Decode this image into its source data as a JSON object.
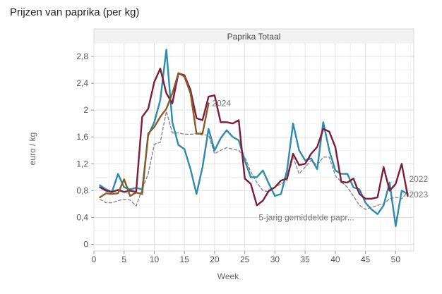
{
  "title": "Prijzen van paprika (per kg)",
  "chart_data": {
    "type": "line",
    "panel_title": "Paprika Totaal",
    "xlabel": "Week",
    "ylabel": "euro / kg",
    "xlim": [
      0,
      53
    ],
    "ylim": [
      -0.1,
      3.0
    ],
    "x_ticks": [
      0,
      5,
      10,
      15,
      20,
      25,
      30,
      35,
      40,
      45,
      50
    ],
    "y_ticks": [
      0,
      0.4,
      0.8,
      1.2,
      1.6,
      2,
      2.4,
      2.8
    ],
    "y_tick_labels": [
      "0",
      "0,4",
      "0,8",
      "1,2",
      "1,6",
      "2",
      "2,4",
      "2,8"
    ],
    "grid": true,
    "series": [
      {
        "name": "5-jarig gemiddelde papr...",
        "color": "#888888",
        "dashed": true,
        "x": [
          1,
          2,
          3,
          4,
          5,
          6,
          7,
          8,
          9,
          10,
          11,
          12,
          13,
          14,
          15,
          16,
          17,
          18,
          19,
          20,
          21,
          22,
          23,
          24,
          25,
          26,
          27,
          28,
          29,
          30,
          31,
          32,
          33,
          34,
          35,
          36,
          37,
          38,
          39,
          40,
          41,
          42,
          43,
          44,
          45,
          46,
          47,
          48,
          49,
          50,
          51,
          52
        ],
        "y": [
          0.67,
          0.62,
          0.62,
          0.65,
          0.67,
          0.66,
          0.57,
          0.82,
          1.05,
          1.49,
          1.52,
          1.98,
          1.66,
          1.66,
          1.64,
          1.64,
          1.65,
          1.63,
          1.63,
          1.35,
          1.4,
          1.44,
          1.42,
          1.4,
          1.3,
          1.08,
          0.92,
          0.8,
          0.78,
          0.85,
          0.9,
          0.95,
          1.3,
          1.05,
          1.15,
          1.25,
          1.18,
          1.3,
          1.3,
          1.02,
          0.93,
          0.85,
          0.72,
          0.58,
          0.52,
          0.55,
          0.58,
          0.6,
          0.68,
          0.7,
          0.68,
          0.78
        ]
      },
      {
        "name": "2022",
        "color": "#7b1e3a",
        "dashed": false,
        "x": [
          1,
          2,
          3,
          4,
          5,
          6,
          7,
          8,
          9,
          10,
          11,
          12,
          13,
          14,
          15,
          16,
          17,
          18,
          19,
          20,
          21,
          22,
          23,
          24,
          25,
          26,
          27,
          28,
          29,
          30,
          31,
          32,
          33,
          34,
          35,
          36,
          37,
          38,
          39,
          40,
          41,
          42,
          43,
          44,
          45,
          46,
          47,
          48,
          49,
          50,
          51,
          52
        ],
        "y": [
          0.85,
          0.8,
          0.78,
          0.81,
          0.78,
          0.8,
          0.78,
          1.9,
          2.02,
          2.42,
          2.62,
          2.25,
          2.1,
          2.55,
          2.52,
          2.3,
          1.88,
          1.85,
          2.2,
          2.22,
          1.82,
          1.82,
          1.8,
          1.85,
          0.98,
          0.9,
          0.58,
          0.65,
          0.8,
          0.85,
          0.95,
          0.98,
          1.35,
          1.18,
          1.2,
          1.35,
          1.45,
          1.72,
          1.68,
          1.45,
          0.93,
          0.92,
          0.98,
          0.75,
          0.68,
          0.68,
          0.7,
          1.15,
          0.8,
          0.9,
          1.2,
          0.72
        ]
      },
      {
        "name": "2023",
        "color": "#2e8bab",
        "dashed": false,
        "x": [
          1,
          2,
          3,
          4,
          5,
          6,
          7,
          8,
          9,
          10,
          11,
          12,
          13,
          14,
          15,
          16,
          17,
          18,
          19,
          20,
          21,
          22,
          23,
          24,
          25,
          26,
          27,
          28,
          29,
          30,
          31,
          32,
          33,
          34,
          35,
          36,
          37,
          38,
          39,
          40,
          41,
          42,
          43,
          44,
          45,
          46,
          47,
          48,
          49,
          50,
          51,
          52
        ],
        "y": [
          0.88,
          0.82,
          0.78,
          1.05,
          0.85,
          0.82,
          0.84,
          0.82,
          1.62,
          1.82,
          2.15,
          2.9,
          1.82,
          1.48,
          1.42,
          1.12,
          0.75,
          1.15,
          1.72,
          1.4,
          1.58,
          1.7,
          1.6,
          1.55,
          1.25,
          1.0,
          1.0,
          1.1,
          0.9,
          0.72,
          0.75,
          1.1,
          1.8,
          1.4,
          1.25,
          1.28,
          1.12,
          1.82,
          1.4,
          1.1,
          1.05,
          1.05,
          0.85,
          0.82,
          0.62,
          0.52,
          0.45,
          0.58,
          0.92,
          0.27,
          0.8,
          0.75
        ]
      },
      {
        "name": "2024",
        "color": "#8b5a2b",
        "dashed": false,
        "x": [
          1,
          2,
          3,
          4,
          5,
          6,
          7,
          8,
          9,
          10,
          11,
          12,
          13,
          14,
          15,
          16,
          17,
          18,
          19
        ],
        "y": [
          0.7,
          0.76,
          0.75,
          0.76,
          0.97,
          0.72,
          0.77,
          0.75,
          1.65,
          1.75,
          1.9,
          2.02,
          2.25,
          2.55,
          2.5,
          2.25,
          1.65,
          1.65,
          2.1
        ]
      }
    ],
    "annotations": [
      {
        "text": "2024",
        "series": "2024"
      },
      {
        "text": "2022",
        "series": "2022"
      },
      {
        "text": "2023",
        "series": "2023"
      },
      {
        "text": "5-jarig gemiddelde papr...",
        "series": "5-jarig gemiddelde papr..."
      }
    ]
  }
}
